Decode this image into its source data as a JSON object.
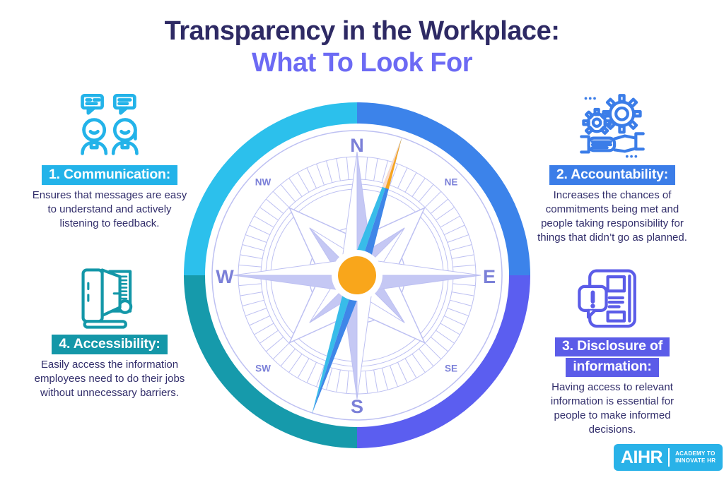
{
  "title": {
    "line1": "Transparency in the Workplace:",
    "line2": "What To Look For"
  },
  "sections": [
    {
      "id": "communication",
      "label": "1. Communication:",
      "description": "Ensures that messages are easy to understand and actively listening to feedback.",
      "color": "#23b3e9",
      "icon": "two-people-chat-icon"
    },
    {
      "id": "accountability",
      "label": "2. Accountability:",
      "description": "Increases the chances of commitments being met and people taking responsibility for things that didn’t go as planned.",
      "color": "#3b7de8",
      "icon": "gears-handshake-icon"
    },
    {
      "id": "disclosure",
      "label_line1": "3. Disclosure of",
      "label_line2": "information:",
      "description": "Having access to relevant information is essential for people to make informed decisions.",
      "color": "#5b5ce8",
      "icon": "news-alert-icon"
    },
    {
      "id": "accessibility",
      "label": "4. Accessibility:",
      "description": "Easily access the information employees need to do their jobs without unnecessary barriers.",
      "color": "#1497a8",
      "icon": "folder-documents-icon"
    }
  ],
  "compass": {
    "labels": {
      "n": "N",
      "ne": "NE",
      "e": "E",
      "se": "SE",
      "s": "S",
      "sw": "SW",
      "w": "W",
      "nw": "NW"
    },
    "ring_colors": {
      "top_left": "#2cc0ec",
      "top_right": "#3c83ea",
      "bottom_right": "#5b5ef0",
      "bottom_left": "#169aab"
    },
    "needle_colors": {
      "left": "#38bce9",
      "right": "#3f86e8",
      "tip": "#f9a51c",
      "tip_pale": "#fcd9c7",
      "hub": "#f9a61b"
    },
    "rose_color": "#c5c8f4",
    "line_color": "#bdc0f2",
    "label_color": "#7b80d8"
  },
  "logo": {
    "brand": "AIHR",
    "tagline_line1": "ACADEMY TO",
    "tagline_line2": "INNOVATE HR",
    "background": "#29b2e8"
  }
}
